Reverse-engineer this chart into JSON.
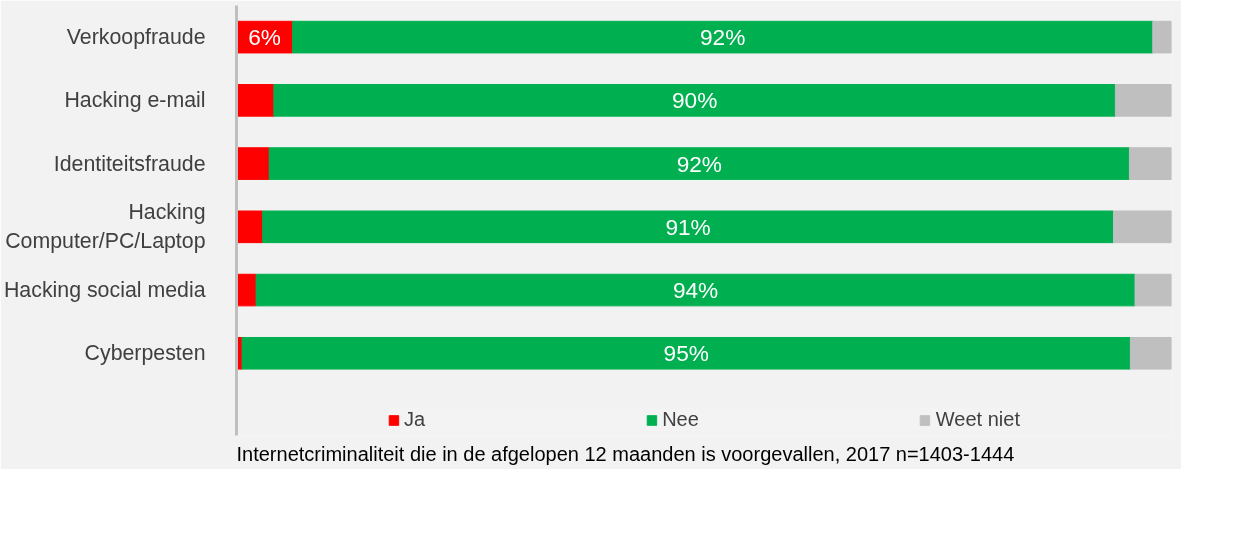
{
  "chart_data": {
    "type": "bar",
    "orientation": "horizontal",
    "stacked": true,
    "categories": [
      "Verkoopfraude",
      "Hacking e-mail",
      "Identiteitsfraude",
      "Hacking\nComputer/PC/Laptop",
      "Hacking social media",
      "Cyberpesten"
    ],
    "series": [
      {
        "name": "Ja",
        "color": "#ff0000",
        "values": [
          6,
          4,
          3.5,
          2.8,
          2.1,
          0.6
        ],
        "value_labels": [
          "6%",
          null,
          null,
          null,
          null,
          null
        ]
      },
      {
        "name": "Nee",
        "color": "#00b050",
        "values": [
          92,
          90,
          92,
          91,
          94,
          95
        ],
        "value_labels": [
          "92%",
          "90%",
          "92%",
          "91%",
          "94%",
          "95%"
        ]
      },
      {
        "name": "Weet niet",
        "color": "#bfbfbf",
        "values": [
          2,
          6,
          4.5,
          6.2,
          3.9,
          4.4
        ]
      }
    ],
    "xlim": [
      0,
      100
    ],
    "tick_labels": "y",
    "grid": false,
    "legend": "bottom",
    "annotations": [
      "Internetcriminaliteit die in de afgelopen 12 maanden is voorgevallen, 2017 n=1403-1444"
    ]
  }
}
